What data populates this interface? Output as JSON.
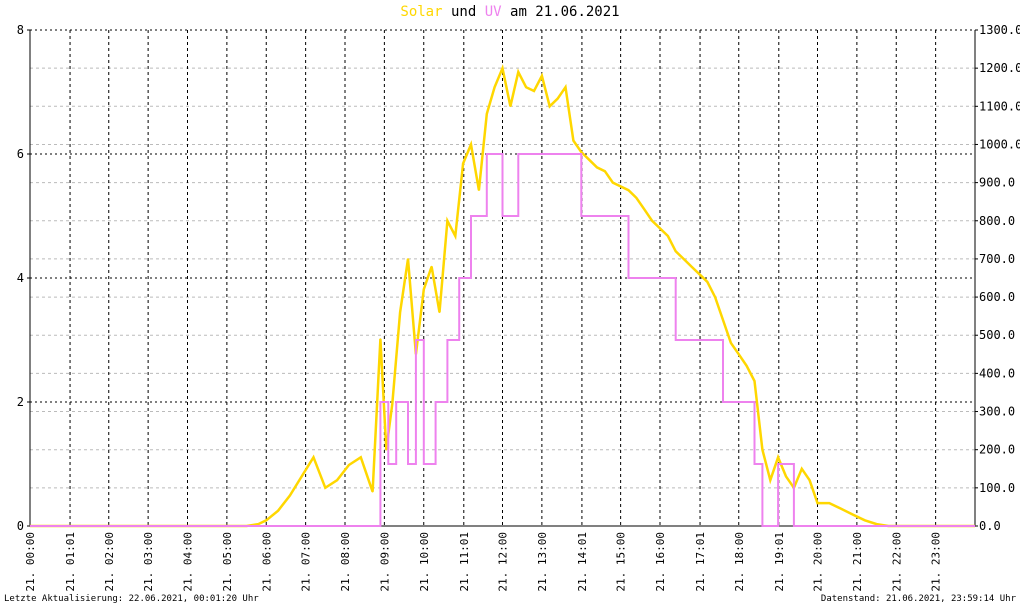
{
  "title": {
    "solar_label": "Solar",
    "und": "und",
    "uv_label": "UV",
    "am_date": "am 21.06.2021",
    "solar_color": "#ffd700",
    "uv_color": "#ee82ee"
  },
  "footer": {
    "left": "Letzte Aktualisierung: 22.06.2021, 00:01:20 Uhr",
    "right": "Datenstand: 21.06.2021, 23:59:14 Uhr"
  },
  "chart_data": {
    "type": "line",
    "title": "Solar und UV am 21.06.2021",
    "x_range": [
      0,
      24
    ],
    "y_left": {
      "range": [
        0,
        8
      ],
      "ticks": [
        "0",
        "2",
        "4",
        "6",
        "8"
      ],
      "series": "UV"
    },
    "y_right": {
      "range": [
        0,
        1300
      ],
      "ticks": [
        "0.0",
        "100.0",
        "200.0",
        "300.0",
        "400.0",
        "500.0",
        "600.0",
        "700.0",
        "800.0",
        "900.0",
        "1000.0",
        "1100.0",
        "1200.0",
        "1300.0"
      ],
      "series": "Solar"
    },
    "x_tick_labels": [
      "21. 00:00",
      "21. 01:01",
      "21. 02:00",
      "21. 03:00",
      "21. 04:00",
      "21. 05:00",
      "21. 06:00",
      "21. 07:00",
      "21. 08:00",
      "21. 09:00",
      "21. 10:00",
      "21. 11:01",
      "21. 12:00",
      "21. 13:00",
      "21. 14:01",
      "21. 15:00",
      "21. 16:00",
      "21. 17:01",
      "21. 18:00",
      "21. 19:01",
      "21. 20:00",
      "21. 21:00",
      "21. 22:00",
      "21. 23:00"
    ],
    "x_tick_hours": [
      0,
      1.017,
      2,
      3,
      4,
      5,
      6,
      7,
      8,
      9,
      10,
      11.017,
      12,
      13,
      14.017,
      15,
      16,
      17.017,
      18,
      19.017,
      20,
      21,
      22,
      23
    ],
    "grid": true,
    "series": [
      {
        "name": "Solar",
        "axis": "right",
        "color": "#ffd700",
        "x": [
          0,
          5.5,
          5.8,
          6.0,
          6.3,
          6.6,
          6.9,
          7.2,
          7.5,
          7.8,
          8.1,
          8.4,
          8.7,
          8.9,
          9.05,
          9.2,
          9.4,
          9.6,
          9.8,
          10.0,
          10.2,
          10.4,
          10.6,
          10.8,
          11.0,
          11.2,
          11.4,
          11.6,
          11.8,
          12.0,
          12.2,
          12.4,
          12.6,
          12.8,
          13.0,
          13.2,
          13.4,
          13.6,
          13.8,
          14.0,
          14.2,
          14.4,
          14.6,
          14.8,
          15.0,
          15.2,
          15.4,
          15.6,
          15.8,
          16.0,
          16.2,
          16.4,
          16.6,
          16.8,
          17.0,
          17.2,
          17.4,
          17.6,
          17.8,
          18.0,
          18.2,
          18.4,
          18.6,
          18.8,
          19.0,
          19.2,
          19.4,
          19.6,
          19.8,
          20.0,
          20.3,
          20.6,
          20.9,
          21.2,
          21.5,
          21.8,
          24
        ],
        "y": [
          0,
          0,
          5,
          15,
          40,
          80,
          130,
          180,
          100,
          120,
          160,
          180,
          90,
          490,
          200,
          320,
          560,
          700,
          450,
          620,
          680,
          560,
          800,
          760,
          950,
          1000,
          880,
          1080,
          1150,
          1200,
          1100,
          1190,
          1150,
          1140,
          1180,
          1100,
          1120,
          1150,
          1010,
          980,
          960,
          940,
          930,
          900,
          890,
          880,
          860,
          830,
          800,
          780,
          760,
          720,
          700,
          680,
          660,
          640,
          600,
          540,
          480,
          450,
          420,
          380,
          200,
          120,
          180,
          130,
          100,
          150,
          120,
          60,
          60,
          45,
          30,
          15,
          5,
          0,
          0
        ]
      },
      {
        "name": "UV",
        "axis": "left",
        "color": "#ee82ee",
        "x": [
          0,
          8.9,
          8.9,
          9.1,
          9.1,
          9.3,
          9.3,
          9.6,
          9.6,
          9.8,
          9.8,
          10.0,
          10.0,
          10.3,
          10.3,
          10.6,
          10.6,
          10.9,
          10.9,
          11.2,
          11.2,
          11.6,
          11.6,
          12.0,
          12.0,
          12.4,
          12.4,
          12.8,
          12.8,
          13.2,
          13.2,
          13.6,
          13.6,
          14.0,
          14.0,
          14.4,
          14.4,
          14.8,
          14.8,
          15.2,
          15.2,
          15.6,
          15.6,
          16.0,
          16.0,
          16.4,
          16.4,
          16.8,
          16.8,
          17.2,
          17.2,
          17.6,
          17.6,
          18.0,
          18.0,
          18.4,
          18.4,
          18.6,
          18.6,
          19.0,
          19.0,
          19.4,
          19.4,
          24
        ],
        "y": [
          0,
          0,
          2,
          2,
          1,
          1,
          2,
          2,
          1,
          1,
          3,
          3,
          1,
          1,
          2,
          2,
          3,
          3,
          4,
          4,
          5,
          5,
          6,
          6,
          5,
          5,
          6,
          6,
          6,
          6,
          6,
          6,
          6,
          6,
          5,
          5,
          5,
          5,
          5,
          5,
          4,
          4,
          4,
          4,
          4,
          4,
          3,
          3,
          3,
          3,
          3,
          3,
          2,
          2,
          2,
          2,
          1,
          1,
          0,
          0,
          1,
          1,
          0,
          0
        ]
      }
    ]
  }
}
